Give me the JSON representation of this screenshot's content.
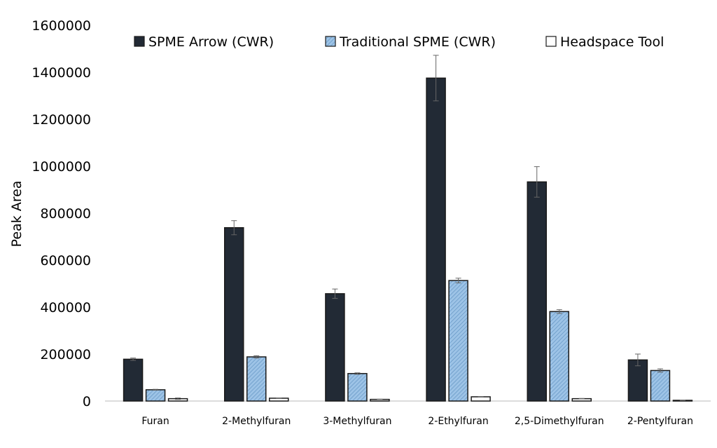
{
  "chart_data": {
    "type": "bar",
    "title": "",
    "xlabel": "",
    "ylabel": "Peak Area",
    "ylim": [
      0,
      1600000
    ],
    "yticks": [
      "0",
      "200000",
      "400000",
      "600000",
      "800000",
      "1000000",
      "1200000",
      "1400000",
      "1600000"
    ],
    "grid": false,
    "legend_position": "top",
    "categories": [
      "Furan",
      "2-Methylfuran",
      "3-Methylfuran",
      "2-Ethylfuran",
      "2,5-Dimethylfuran",
      "2-Pentylfuran"
    ],
    "series": [
      {
        "name": "SPME Arrow (CWR)",
        "color": "#222a35",
        "pattern": "solid",
        "values": [
          178000,
          738000,
          457000,
          1375000,
          933000,
          175000
        ],
        "errors": [
          5000,
          30000,
          20000,
          97000,
          65000,
          25000
        ]
      },
      {
        "name": "Traditional SPME (CWR)",
        "color": "#9dc3e6",
        "pattern": "hatched",
        "values": [
          48000,
          188000,
          117000,
          513000,
          381000,
          130000
        ],
        "errors": [
          2000,
          5000,
          3000,
          10000,
          8000,
          7000
        ]
      },
      {
        "name": "Headspace Tool",
        "color": "#ffffff",
        "pattern": "outline",
        "values": [
          10000,
          12000,
          7000,
          18000,
          10000,
          3000
        ],
        "errors": [
          3000,
          1000,
          1000,
          1000,
          1000,
          500
        ]
      }
    ]
  }
}
